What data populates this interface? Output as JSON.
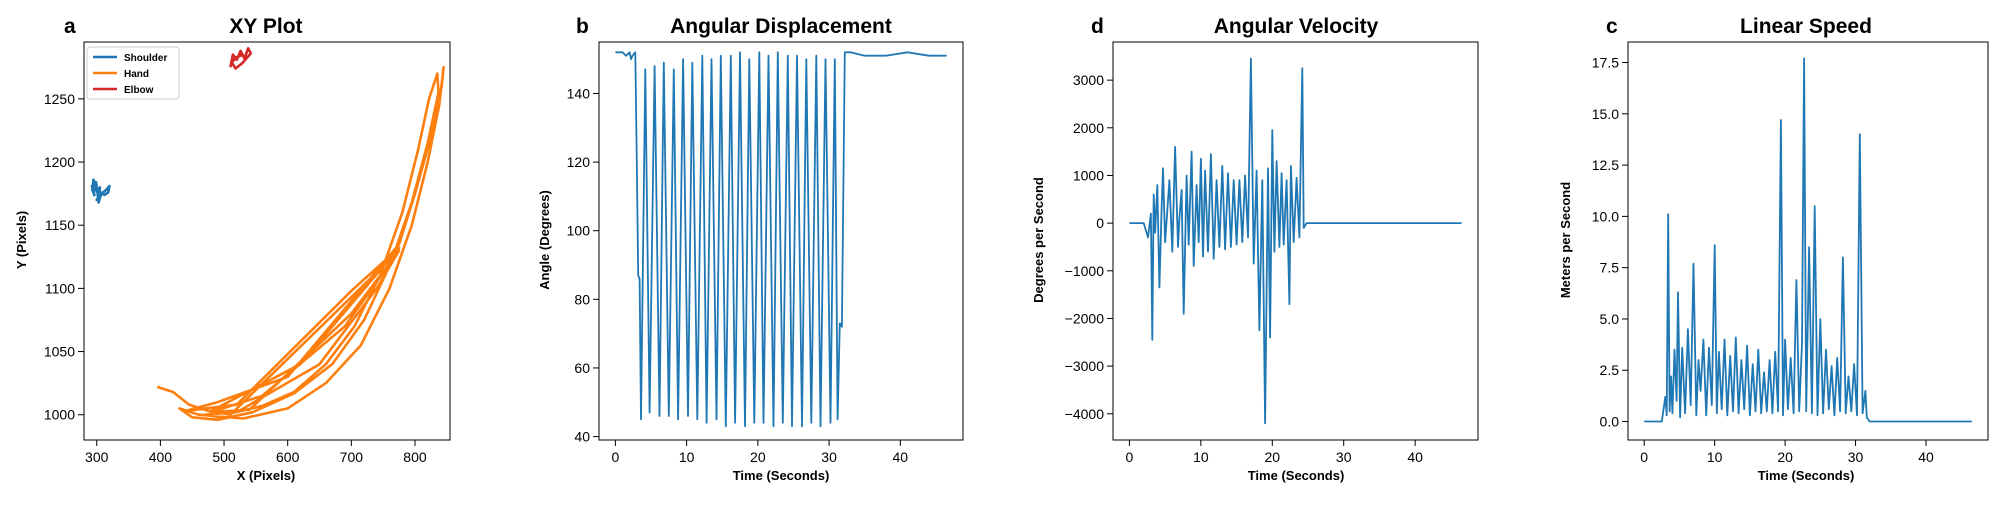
{
  "chart_data": [
    {
      "type": "line",
      "panel_letter": "a",
      "title": "XY Plot",
      "xlabel": "X (Pixels)",
      "ylabel": "Y (Pixels)",
      "xlim": [
        280,
        855
      ],
      "ylim": [
        980,
        1295
      ],
      "xticks": [
        300,
        400,
        500,
        600,
        700,
        800
      ],
      "yticks": [
        1000,
        1050,
        1100,
        1150,
        1200,
        1250
      ],
      "legend_position": "upper-left",
      "series": [
        {
          "name": "Shoulder",
          "color": "#1f77b4",
          "points": [
            [
              292,
              1182
            ],
            [
              296,
              1176
            ],
            [
              299,
              1184
            ],
            [
              302,
              1172
            ],
            [
              305,
              1180
            ],
            [
              303,
              1168
            ],
            [
              307,
              1175
            ],
            [
              300,
              1170
            ],
            [
              310,
              1176
            ],
            [
              315,
              1178
            ],
            [
              320,
              1181
            ],
            [
              318,
              1176
            ],
            [
              312,
              1174
            ],
            [
              306,
              1176
            ],
            [
              300,
              1180
            ],
            [
              295,
              1186
            ],
            [
              293,
              1178
            ],
            [
              297,
              1173
            ]
          ]
        },
        {
          "name": "Hand",
          "color": "#ff7f0e",
          "points": [
            [
              395,
              1022
            ],
            [
              420,
              1018
            ],
            [
              445,
              1008
            ],
            [
              475,
              1003
            ],
            [
              510,
              1001
            ],
            [
              560,
              1007
            ],
            [
              610,
              1018
            ],
            [
              660,
              1040
            ],
            [
              705,
              1070
            ],
            [
              745,
              1110
            ],
            [
              780,
              1160
            ],
            [
              805,
              1210
            ],
            [
              822,
              1250
            ],
            [
              835,
              1270
            ],
            [
              837,
              1255
            ],
            [
              820,
              1215
            ],
            [
              795,
              1168
            ],
            [
              762,
              1120
            ],
            [
              720,
              1075
            ],
            [
              670,
              1040
            ],
            [
              610,
              1017
            ],
            [
              545,
              1002
            ],
            [
              490,
              996
            ],
            [
              450,
              998
            ],
            [
              430,
              1005
            ],
            [
              460,
              1000
            ],
            [
              530,
              997
            ],
            [
              600,
              1005
            ],
            [
              660,
              1025
            ],
            [
              715,
              1055
            ],
            [
              760,
              1100
            ],
            [
              795,
              1150
            ],
            [
              820,
              1200
            ],
            [
              838,
              1245
            ],
            [
              845,
              1275
            ],
            [
              842,
              1260
            ],
            [
              828,
              1225
            ],
            [
              800,
              1175
            ],
            [
              775,
              1135
            ],
            [
              600,
              1030
            ],
            [
              490,
              1010
            ],
            [
              440,
              1003
            ],
            [
              520,
              1008
            ],
            [
              700,
              1098
            ],
            [
              775,
              1132
            ],
            [
              620,
              1040
            ],
            [
              480,
              1003
            ],
            [
              510,
              1000
            ],
            [
              775,
              1130
            ],
            [
              690,
              1070
            ],
            [
              560,
              1015
            ],
            [
              480,
              1002
            ],
            [
              540,
              1004
            ],
            [
              700,
              1080
            ],
            [
              775,
              1130
            ],
            [
              740,
              1100
            ],
            [
              650,
              1040
            ],
            [
              520,
              1002
            ],
            [
              470,
              1000
            ],
            [
              505,
              997
            ]
          ]
        },
        {
          "name": "Elbow",
          "color": "#d62728",
          "points": [
            [
              510,
              1275
            ],
            [
              514,
              1285
            ],
            [
              520,
              1281
            ],
            [
              526,
              1288
            ],
            [
              532,
              1282
            ],
            [
              538,
              1290
            ],
            [
              542,
              1286
            ],
            [
              528,
              1278
            ],
            [
              518,
              1274
            ],
            [
              512,
              1279
            ],
            [
              520,
              1283
            ],
            [
              530,
              1285
            ]
          ]
        }
      ]
    },
    {
      "type": "line",
      "panel_letter": "b",
      "title": "Angular Displacement",
      "xlabel": "Time (Seconds)",
      "ylabel": "Angle (Degrees)",
      "xlim": [
        -2.3,
        48.8
      ],
      "ylim": [
        39,
        155
      ],
      "xticks": [
        0,
        10,
        20,
        30,
        40
      ],
      "yticks": [
        40,
        60,
        80,
        100,
        120,
        140
      ],
      "color": "#1f77b4",
      "series": [
        {
          "x": [
            0,
            1.0,
            1.5,
            2.0,
            2.2,
            2.4,
            2.8,
            3.0,
            3.2,
            3.4,
            3.6,
            4.2,
            4.8,
            5.5,
            6.2,
            6.8,
            7.5,
            8.2,
            8.8,
            9.5,
            10.2,
            10.8,
            11.5,
            12.2,
            12.8,
            13.5,
            14.2,
            14.8,
            15.5,
            16.2,
            16.8,
            17.5,
            18.2,
            18.8,
            19.5,
            20.2,
            20.8,
            21.5,
            22.2,
            22.8,
            23.5,
            24.2,
            24.8,
            25.5,
            26.2,
            26.8,
            27.5,
            28.2,
            28.8,
            29.5,
            30.2,
            30.8,
            31.2,
            31.5,
            31.8,
            32.2,
            33.0,
            35.0,
            38.0,
            41.0,
            44.0,
            46.5
          ],
          "y": [
            152,
            152,
            151,
            152,
            150,
            151,
            152,
            120,
            87,
            86,
            45,
            147,
            47,
            148,
            46,
            149,
            46,
            147,
            45,
            150,
            46,
            149,
            45,
            151,
            44,
            150,
            45,
            151,
            43,
            151,
            44,
            152,
            43,
            150,
            44,
            152,
            44,
            151,
            43,
            152,
            44,
            151,
            43,
            151,
            43,
            150,
            44,
            151,
            43,
            150,
            44,
            150,
            45,
            73,
            72,
            152,
            152,
            151,
            151,
            152,
            151,
            151
          ]
        }
      ]
    },
    {
      "type": "line",
      "panel_letter": "d",
      "title": "Angular Velocity",
      "xlabel": "Time (Seconds)",
      "ylabel": "Degrees per Second",
      "xlim": [
        -2.3,
        48.8
      ],
      "ylim": [
        -4550,
        3800
      ],
      "xticks": [
        0,
        10,
        20,
        30,
        40
      ],
      "yticks": [
        -4000,
        -3000,
        -2000,
        -1000,
        0,
        1000,
        2000,
        3000
      ],
      "color": "#1f77b4",
      "series": [
        {
          "x": [
            0,
            2.0,
            2.6,
            3.0,
            3.2,
            3.4,
            3.6,
            3.9,
            4.2,
            4.5,
            4.7,
            5.0,
            5.2,
            5.6,
            6.0,
            6.4,
            6.8,
            7.0,
            7.3,
            7.6,
            8.0,
            8.3,
            8.7,
            9.0,
            9.4,
            9.7,
            10.0,
            10.3,
            10.6,
            11.0,
            11.4,
            11.8,
            12.2,
            12.6,
            13.0,
            13.4,
            13.8,
            14.2,
            14.6,
            15.0,
            15.4,
            15.8,
            16.2,
            16.6,
            17.0,
            17.4,
            17.8,
            18.2,
            18.6,
            19.0,
            19.4,
            19.7,
            20.0,
            20.3,
            20.6,
            21.0,
            21.3,
            21.6,
            22.0,
            22.4,
            22.6,
            23.0,
            23.4,
            23.8,
            24.2,
            24.4,
            24.8,
            25.2,
            25.6,
            26.0,
            26.4,
            26.8,
            27.2,
            27.6,
            28.0,
            28.4,
            28.8,
            29.2,
            29.6,
            30.0,
            30.4,
            30.8,
            31.2,
            31.6,
            32.0,
            33.0,
            35.0,
            40.0,
            46.5
          ],
          "y": [
            0,
            0,
            -300,
            200,
            -2450,
            600,
            -200,
            800,
            -1350,
            300,
            1150,
            -400,
            50,
            900,
            -600,
            1600,
            -500,
            100,
            700,
            -1900,
            1000,
            -450,
            1500,
            -900,
            800,
            -400,
            1350,
            -700,
            1100,
            -600,
            1450,
            -750,
            900,
            -500,
            1200,
            -550,
            1050,
            -500,
            900,
            -450,
            900,
            -400,
            1000,
            -300,
            3450,
            -850,
            1100,
            -2250,
            900,
            -4200,
            1150,
            -2400,
            1950,
            -600,
            1300,
            -500,
            1050,
            -450,
            900,
            -1700,
            1200,
            -400,
            950,
            -300,
            3250,
            -100,
            0,
            0,
            0,
            0,
            0,
            0,
            0,
            0,
            0,
            0,
            0,
            0,
            0,
            0,
            0,
            0,
            0,
            0,
            0,
            0,
            0,
            0,
            0
          ]
        }
      ]
    },
    {
      "type": "line",
      "panel_letter": "c",
      "title": "Linear Speed",
      "xlabel": "Time (Seconds)",
      "ylabel": "Meters per Second",
      "xlim": [
        -2.3,
        48.8
      ],
      "ylim": [
        -0.9,
        18.5
      ],
      "xticks": [
        0,
        10,
        20,
        30,
        40
      ],
      "yticks": [
        0.0,
        2.5,
        5.0,
        7.5,
        10.0,
        12.5,
        15.0,
        17.5
      ],
      "color": "#1f77b4",
      "series": [
        {
          "x": [
            0,
            2.5,
            3.0,
            3.2,
            3.4,
            3.6,
            3.8,
            4.0,
            4.3,
            4.6,
            4.8,
            5.1,
            5.4,
            5.8,
            6.2,
            6.6,
            7.0,
            7.4,
            7.7,
            8.0,
            8.4,
            8.8,
            9.2,
            9.6,
            10.0,
            10.3,
            10.6,
            11.0,
            11.4,
            11.8,
            12.2,
            12.6,
            13.0,
            13.4,
            13.8,
            14.2,
            14.6,
            15.0,
            15.4,
            15.8,
            16.2,
            16.6,
            17.0,
            17.4,
            17.8,
            18.2,
            18.6,
            19.0,
            19.4,
            19.7,
            20.0,
            20.4,
            20.8,
            21.2,
            21.6,
            22.0,
            22.4,
            22.7,
            23.0,
            23.4,
            23.8,
            24.2,
            24.6,
            25.0,
            25.4,
            25.8,
            26.2,
            26.6,
            27.0,
            27.4,
            27.8,
            28.2,
            28.6,
            29.0,
            29.4,
            29.8,
            30.2,
            30.6,
            31.0,
            31.4,
            31.6,
            32.0,
            33.0,
            40.0,
            46.5
          ],
          "y": [
            0,
            0,
            1.2,
            0.3,
            10.1,
            0.5,
            2.2,
            0.4,
            3.5,
            1.0,
            6.3,
            0.2,
            3.6,
            0.4,
            4.5,
            0.8,
            7.7,
            0.3,
            3.0,
            1.5,
            4.0,
            0.3,
            3.6,
            0.8,
            8.6,
            0.4,
            3.4,
            0.6,
            4.0,
            0.3,
            3.2,
            0.5,
            4.1,
            0.4,
            3.0,
            0.6,
            3.7,
            0.3,
            2.8,
            0.5,
            3.5,
            0.4,
            2.4,
            0.5,
            3.0,
            0.4,
            3.4,
            0.5,
            14.7,
            0.3,
            4.0,
            0.6,
            3.1,
            0.4,
            6.9,
            0.5,
            3.8,
            17.7,
            0.5,
            8.5,
            0.4,
            10.5,
            0.3,
            5.0,
            0.4,
            3.5,
            0.6,
            2.7,
            0.3,
            3.1,
            0.5,
            8.0,
            0.4,
            2.2,
            0.5,
            2.8,
            0.3,
            14.0,
            0.4,
            1.5,
            0.2,
            0,
            0,
            0,
            0
          ]
        }
      ]
    }
  ]
}
